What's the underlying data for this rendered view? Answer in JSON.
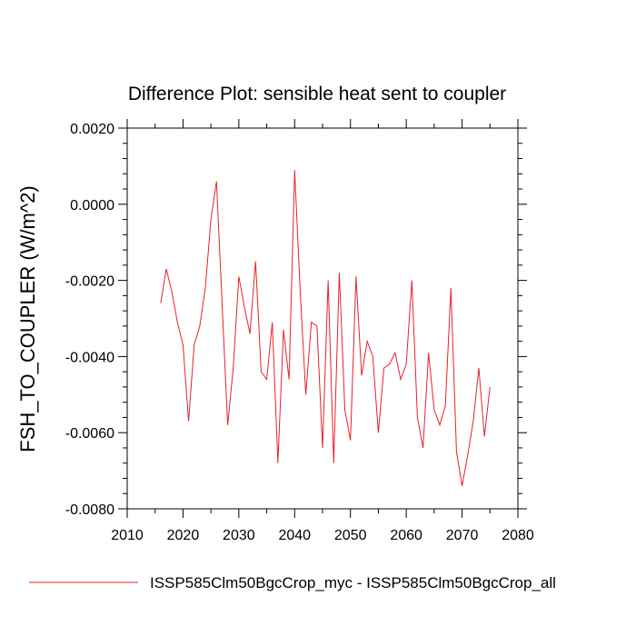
{
  "chart_data": {
    "type": "line",
    "title": "Difference Plot: sensible heat sent to coupler",
    "xlabel": "",
    "ylabel": "FSH_TO_COUPLER  (W/m^2)",
    "xlim": [
      2010,
      2080
    ],
    "ylim": [
      -0.008,
      0.002
    ],
    "x_ticks": [
      2010,
      2020,
      2030,
      2040,
      2050,
      2060,
      2070,
      2080
    ],
    "x_tick_labels": [
      "2010",
      "2020",
      "2030",
      "2040",
      "2050",
      "2060",
      "2070",
      "2080"
    ],
    "y_ticks": [
      -0.008,
      -0.006,
      -0.004,
      -0.002,
      0.0,
      0.002
    ],
    "y_tick_labels": [
      "-0.0080",
      "-0.0060",
      "-0.0040",
      "-0.0020",
      "0.0000",
      "0.0020"
    ],
    "grid": false,
    "legend_position": "bottom",
    "series": [
      {
        "name": "ISSP585Clm50BgcCrop_myc - ISSP585Clm50BgcCrop_all",
        "color": "#e8202a",
        "x": [
          2016,
          2017,
          2018,
          2019,
          2020,
          2021,
          2022,
          2023,
          2024,
          2025,
          2026,
          2027,
          2028,
          2029,
          2030,
          2031,
          2032,
          2033,
          2034,
          2035,
          2036,
          2037,
          2038,
          2039,
          2040,
          2041,
          2042,
          2043,
          2044,
          2045,
          2046,
          2047,
          2048,
          2049,
          2050,
          2051,
          2052,
          2053,
          2054,
          2055,
          2056,
          2057,
          2058,
          2059,
          2060,
          2061,
          2062,
          2063,
          2064,
          2065,
          2066,
          2067,
          2068,
          2069,
          2070,
          2071,
          2072,
          2073,
          2074,
          2075
        ],
        "values": [
          -0.0026,
          -0.0017,
          -0.0023,
          -0.0031,
          -0.0037,
          -0.0057,
          -0.0037,
          -0.0032,
          -0.0022,
          -0.0004,
          0.0006,
          -0.0026,
          -0.0058,
          -0.0043,
          -0.0019,
          -0.0027,
          -0.0034,
          -0.0015,
          -0.0044,
          -0.0046,
          -0.0031,
          -0.0068,
          -0.0033,
          -0.0046,
          0.0009,
          -0.0023,
          -0.005,
          -0.0031,
          -0.0032,
          -0.0064,
          -0.002,
          -0.0068,
          -0.0018,
          -0.0054,
          -0.0062,
          -0.0019,
          -0.0045,
          -0.0036,
          -0.004,
          -0.006,
          -0.0043,
          -0.0042,
          -0.0039,
          -0.0046,
          -0.0042,
          -0.002,
          -0.0056,
          -0.0064,
          -0.0039,
          -0.0054,
          -0.0058,
          -0.0053,
          -0.0022,
          -0.0065,
          -0.0074,
          -0.0066,
          -0.0057,
          -0.0043,
          -0.0061,
          -0.0048
        ]
      }
    ]
  }
}
